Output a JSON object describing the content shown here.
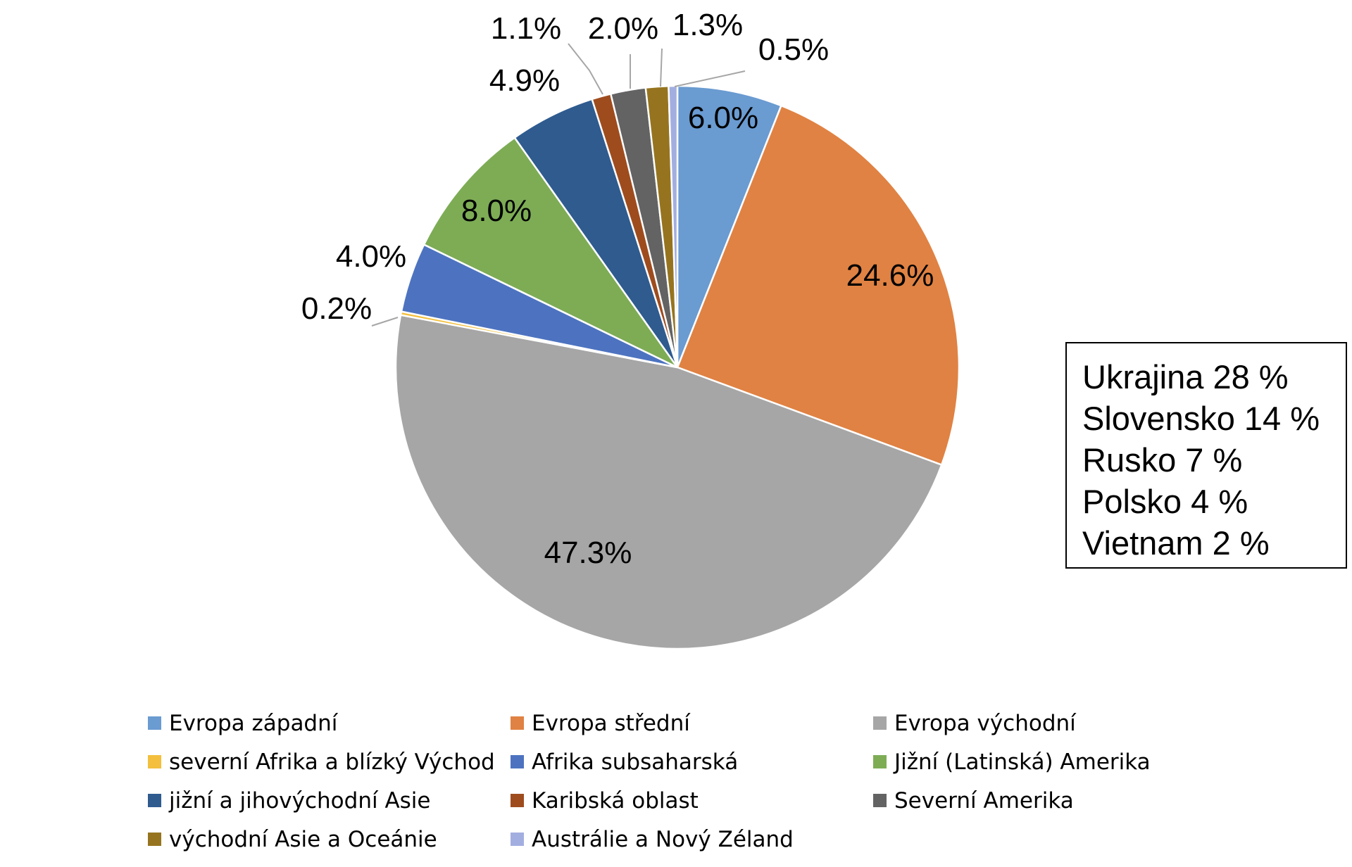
{
  "chart_data": {
    "type": "pie",
    "categories": [
      "Evropa západní",
      "Evropa střední",
      "Evropa východní",
      "severní Afrika a blízký Východ",
      "Afrika subsaharská",
      "Jižní (Latinská) Amerika",
      "jižní a jihovýchodní Asie",
      "Karibská oblast",
      "Severní Amerika",
      "východní Asie a Oceánie",
      "Austrálie a Nový Zéland"
    ],
    "values": [
      6.0,
      24.6,
      47.3,
      0.2,
      4.0,
      8.0,
      4.9,
      1.1,
      2.0,
      1.3,
      0.5
    ],
    "data_labels": [
      "6.0%",
      "24.6%",
      "47.3%",
      "0.2%",
      "4.0%",
      "8.0%",
      "4.9%",
      "1.1%",
      "2.0%",
      "1.3%",
      "0.5%"
    ],
    "colors": [
      "#6a9bd1",
      "#e08243",
      "#a6a6a6",
      "#f3bf3c",
      "#4d73c0",
      "#7dac55",
      "#2f5b8f",
      "#9e4c1e",
      "#636363",
      "#96741f",
      "#a3aee0"
    ],
    "label_placement": [
      "inside",
      "inside",
      "inside",
      "outside",
      "outside",
      "inside",
      "outside",
      "outside",
      "outside",
      "outside",
      "outside"
    ],
    "legend_position": "bottom",
    "title": "",
    "start_angle_deg": 0,
    "direction": "clockwise"
  },
  "legend": {
    "items": [
      {
        "label": "Evropa západní",
        "color": "#6a9bd1"
      },
      {
        "label": "Evropa střední",
        "color": "#e08243"
      },
      {
        "label": "Evropa východní",
        "color": "#a6a6a6"
      },
      {
        "label": "severní Afrika a blízký Východ",
        "color": "#f3bf3c"
      },
      {
        "label": "Afrika subsaharská",
        "color": "#4d73c0"
      },
      {
        "label": "Jižní (Latinská) Amerika",
        "color": "#7dac55"
      },
      {
        "label": "jižní a jihovýchodní Asie",
        "color": "#2f5b8f"
      },
      {
        "label": "Karibská oblast",
        "color": "#9e4c1e"
      },
      {
        "label": "Severní Amerika",
        "color": "#636363"
      },
      {
        "label": "východní Asie a Oceánie",
        "color": "#96741f"
      },
      {
        "label": "Austrálie a Nový Zéland",
        "color": "#a3aee0"
      }
    ]
  },
  "info_box": {
    "lines": [
      "Ukrajina 28 %",
      "Slovensko 14 %",
      "Rusko 7 %",
      "Polsko 4 %",
      "Vietnam 2 %"
    ]
  }
}
